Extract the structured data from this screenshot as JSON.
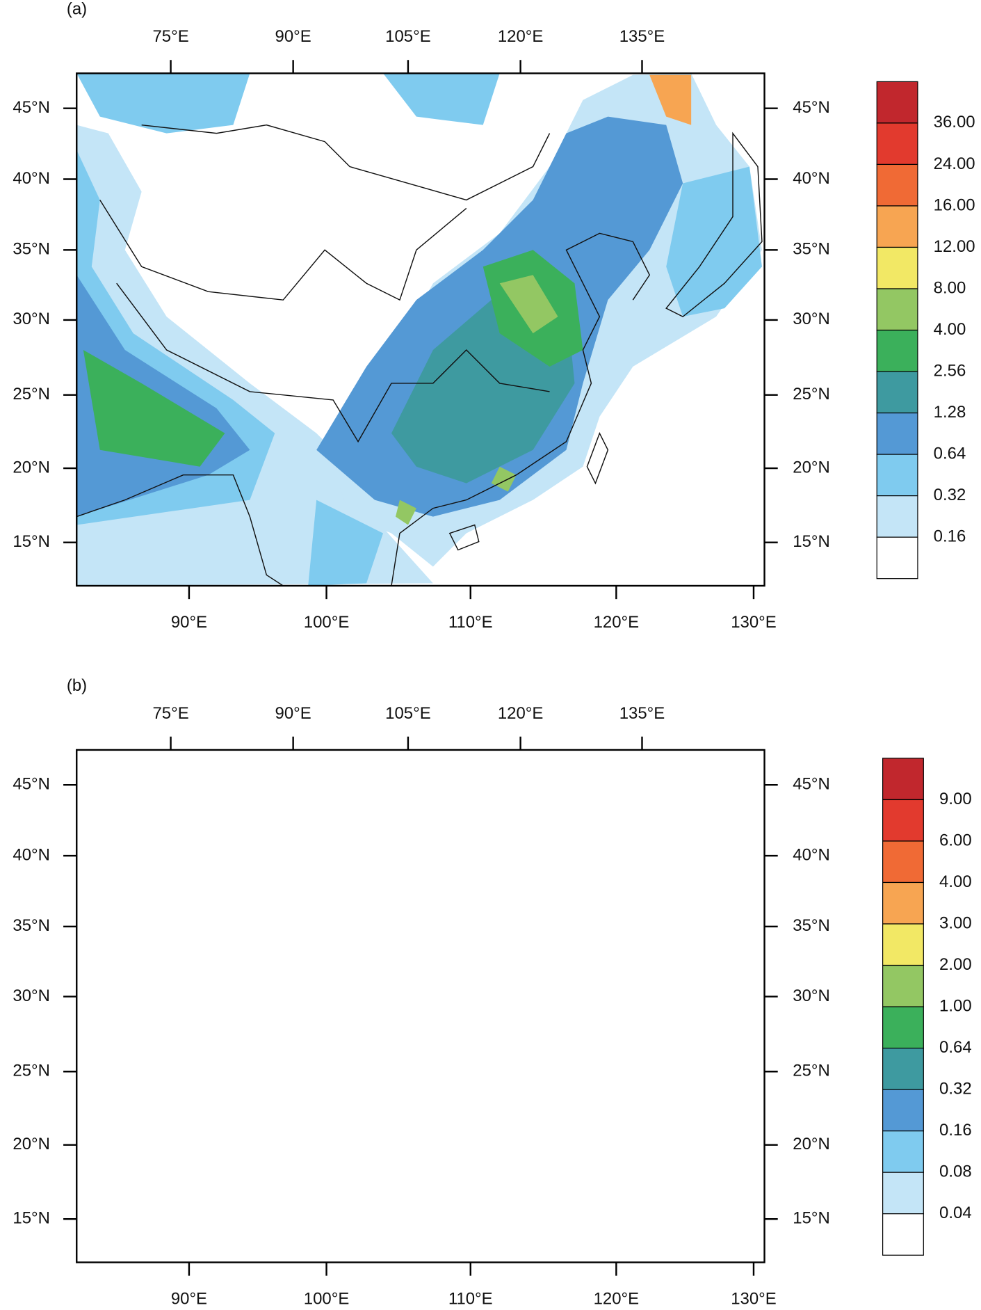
{
  "panels": [
    {
      "label": "(a)",
      "top_ticks": [
        "75°E",
        "90°E",
        "105°E",
        "120°E",
        "135°E"
      ],
      "bottom_ticks": [
        "90°E",
        "100°E",
        "110°E",
        "120°E",
        "130°E"
      ],
      "left_ticks": [
        "45°N",
        "40°N",
        "35°N",
        "30°N",
        "25°N",
        "20°N",
        "15°N"
      ],
      "right_ticks": [
        "45°N",
        "40°N",
        "35°N",
        "30°N",
        "25°N",
        "20°N",
        "15°N"
      ],
      "colorbar": {
        "labels": [
          "36.00",
          "24.00",
          "16.00",
          "12.00",
          "8.00",
          "4.00",
          "2.56",
          "1.28",
          "0.64",
          "0.32",
          "0.16"
        ],
        "colors": [
          "#c1272d",
          "#e23a2e",
          "#f06a35",
          "#f7a552",
          "#f2e865",
          "#93c763",
          "#3bb05b",
          "#3e9aa0",
          "#5499d5",
          "#7fcbef",
          "#c4e5f7",
          "#ffffff"
        ]
      }
    },
    {
      "label": "(b)",
      "top_ticks": [
        "75°E",
        "90°E",
        "105°E",
        "120°E",
        "135°E"
      ],
      "bottom_ticks": [
        "90°E",
        "100°E",
        "110°E",
        "120°E",
        "130°E"
      ],
      "left_ticks": [
        "45°N",
        "40°N",
        "35°N",
        "30°N",
        "25°N",
        "20°N",
        "15°N"
      ],
      "right_ticks": [
        "45°N",
        "40°N",
        "35°N",
        "30°N",
        "25°N",
        "20°N",
        "15°N"
      ],
      "colorbar": {
        "labels": [
          "9.00",
          "6.00",
          "4.00",
          "3.00",
          "2.00",
          "1.00",
          "0.64",
          "0.32",
          "0.16",
          "0.08",
          "0.04"
        ],
        "colors": [
          "#c1272d",
          "#e23a2e",
          "#f06a35",
          "#f7a552",
          "#f2e865",
          "#93c763",
          "#3bb05b",
          "#3e9aa0",
          "#5499d5",
          "#7fcbef",
          "#c4e5f7",
          "#ffffff"
        ]
      }
    }
  ]
}
